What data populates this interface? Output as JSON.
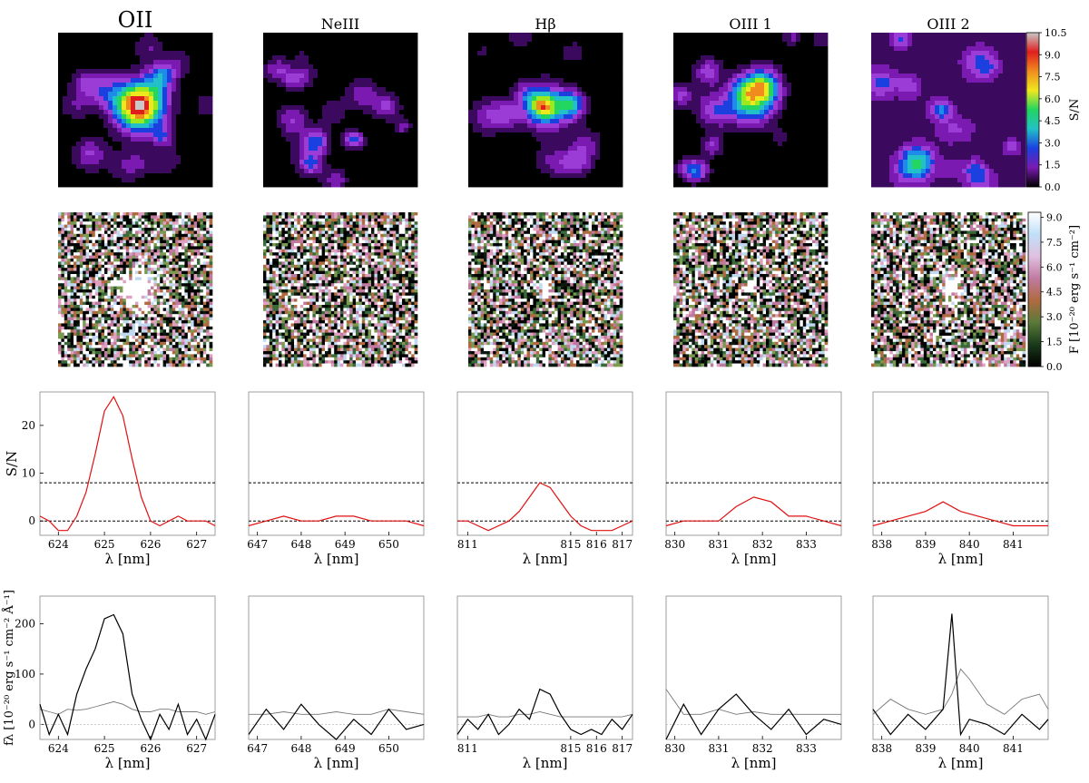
{
  "figure": {
    "columns": [
      {
        "title": "OII"
      },
      {
        "title": "NeIII"
      },
      {
        "title": "Hβ"
      },
      {
        "title": "OIII 1"
      },
      {
        "title": "OIII 2"
      }
    ],
    "sn_colorbar": {
      "label": "S/N",
      "ticks": [
        "0.0",
        "1.5",
        "3.0",
        "4.5",
        "6.0",
        "7.5",
        "9.0",
        "10.5"
      ]
    },
    "flux_colorbar": {
      "label": "F [10⁻²⁰ erg s⁻¹ cm⁻²]",
      "ticks": [
        "0.0",
        "1.5",
        "3.0",
        "4.5",
        "6.0",
        "7.5",
        "9.0"
      ]
    }
  },
  "chart_data": [
    {
      "type": "line",
      "panel": "sn-spectra",
      "ylabel": "S/N",
      "xlabel": "λ [nm]",
      "ylim": [
        -3,
        27
      ],
      "yticks": [
        0,
        10,
        20
      ],
      "threshold_lines": [
        0,
        8
      ],
      "panels": [
        {
          "line": "OII",
          "xlim": [
            623.6,
            627.4
          ],
          "xticks": [
            624,
            625,
            626,
            627
          ],
          "x": [
            623.6,
            623.8,
            624.0,
            624.2,
            624.4,
            624.6,
            624.8,
            625.0,
            625.2,
            625.4,
            625.6,
            625.8,
            626.0,
            626.2,
            626.4,
            626.6,
            626.8,
            627.0,
            627.2,
            627.4
          ],
          "y": [
            1,
            0,
            -2,
            -2,
            1,
            6,
            14,
            23,
            26,
            22,
            13,
            5,
            0,
            -1,
            0,
            1,
            0,
            0,
            0,
            -1
          ]
        },
        {
          "line": "NeIII",
          "xlim": [
            646.8,
            650.8
          ],
          "xticks": [
            647,
            648,
            649,
            650
          ],
          "x": [
            646.8,
            647.2,
            647.6,
            648.0,
            648.4,
            648.8,
            649.2,
            649.6,
            650.0,
            650.4,
            650.8
          ],
          "y": [
            -1,
            0,
            1,
            0,
            0,
            1,
            1,
            0,
            0,
            0,
            -1
          ]
        },
        {
          "line": "Hβ",
          "xlim": [
            810.6,
            817.4
          ],
          "xticks": [
            811,
            815,
            816,
            817
          ],
          "x": [
            810.6,
            811.0,
            811.4,
            811.8,
            812.2,
            812.6,
            813.0,
            813.4,
            813.8,
            814.2,
            814.6,
            815.0,
            815.4,
            815.8,
            816.2,
            816.6,
            817.0,
            817.4
          ],
          "y": [
            0,
            0,
            -1,
            -2,
            -1,
            0,
            2,
            5,
            8,
            7,
            4,
            1,
            -1,
            -2,
            -2,
            -2,
            -1,
            0
          ]
        },
        {
          "line": "OIII 1",
          "xlim": [
            829.8,
            833.8
          ],
          "xticks": [
            830,
            831,
            832,
            833
          ],
          "x": [
            829.8,
            830.2,
            830.6,
            831.0,
            831.4,
            831.8,
            832.2,
            832.6,
            833.0,
            833.4,
            833.8
          ],
          "y": [
            -1,
            0,
            0,
            0,
            3,
            5,
            4,
            1,
            1,
            0,
            -1
          ]
        },
        {
          "line": "OIII 2",
          "xlim": [
            837.8,
            841.8
          ],
          "xticks": [
            838,
            839,
            840,
            841
          ],
          "x": [
            837.8,
            838.2,
            838.6,
            839.0,
            839.4,
            839.8,
            840.2,
            840.6,
            841.0,
            841.4,
            841.8
          ],
          "y": [
            -1,
            0,
            1,
            2,
            4,
            2,
            1,
            0,
            -1,
            -1,
            -1
          ]
        }
      ]
    },
    {
      "type": "line",
      "panel": "flux-spectra",
      "ylabel": "fλ [10⁻²⁰ erg s⁻¹ cm⁻² Å⁻¹]",
      "xlabel": "λ [nm]",
      "ylim": [
        -30,
        255
      ],
      "yticks": [
        0,
        100,
        200
      ],
      "panels": [
        {
          "line": "OII",
          "xlim": [
            623.6,
            627.4
          ],
          "xticks": [
            624,
            625,
            626,
            627
          ],
          "x": [
            623.6,
            623.8,
            624.0,
            624.2,
            624.4,
            624.6,
            624.8,
            625.0,
            625.2,
            625.4,
            625.6,
            625.8,
            626.0,
            626.2,
            626.4,
            626.6,
            626.8,
            627.0,
            627.2,
            627.4
          ],
          "flux": [
            40,
            -20,
            20,
            -20,
            60,
            110,
            150,
            210,
            218,
            180,
            60,
            10,
            -30,
            20,
            -10,
            40,
            -20,
            10,
            -30,
            20
          ],
          "noise": [
            30,
            25,
            20,
            30,
            28,
            30,
            35,
            40,
            45,
            40,
            30,
            25,
            25,
            30,
            30,
            25,
            25,
            25,
            20,
            25
          ]
        },
        {
          "line": "NeIII",
          "xlim": [
            646.8,
            650.8
          ],
          "xticks": [
            647,
            648,
            649,
            650
          ],
          "x": [
            646.8,
            647.2,
            647.6,
            648.0,
            648.4,
            648.8,
            649.2,
            649.6,
            650.0,
            650.4,
            650.8
          ],
          "flux": [
            -20,
            30,
            -10,
            40,
            0,
            -30,
            10,
            -20,
            30,
            -10,
            0
          ],
          "noise": [
            20,
            20,
            25,
            20,
            20,
            25,
            20,
            20,
            30,
            25,
            20
          ]
        },
        {
          "line": "Hβ",
          "xlim": [
            810.6,
            817.4
          ],
          "xticks": [
            811,
            815,
            816,
            817
          ],
          "x": [
            810.6,
            811.0,
            811.4,
            811.8,
            812.2,
            812.6,
            813.0,
            813.4,
            813.8,
            814.2,
            814.6,
            815.0,
            815.4,
            815.8,
            816.2,
            816.6,
            817.0,
            817.4
          ],
          "flux": [
            -20,
            10,
            -10,
            20,
            -20,
            0,
            30,
            10,
            70,
            60,
            20,
            -10,
            -20,
            -10,
            -20,
            10,
            -10,
            20
          ],
          "noise": [
            15,
            15,
            15,
            20,
            15,
            15,
            20,
            20,
            25,
            20,
            15,
            15,
            15,
            15,
            15,
            15,
            15,
            20
          ]
        },
        {
          "line": "OIII 1",
          "xlim": [
            829.8,
            833.8
          ],
          "xticks": [
            830,
            831,
            832,
            833
          ],
          "x": [
            829.8,
            830.2,
            830.6,
            831.0,
            831.4,
            831.8,
            832.2,
            832.6,
            833.0,
            833.4,
            833.8
          ],
          "flux": [
            -30,
            40,
            -20,
            30,
            60,
            20,
            -10,
            30,
            -20,
            10,
            0
          ],
          "noise": [
            70,
            20,
            20,
            30,
            20,
            25,
            20,
            20,
            20,
            20,
            20
          ]
        },
        {
          "line": "OIII 2",
          "xlim": [
            837.8,
            841.8
          ],
          "xticks": [
            838,
            839,
            840,
            841
          ],
          "x": [
            837.8,
            838.2,
            838.6,
            839.0,
            839.4,
            839.6,
            839.8,
            840.0,
            840.4,
            840.8,
            841.2,
            841.6,
            841.8
          ],
          "flux": [
            30,
            -20,
            20,
            -10,
            30,
            220,
            -20,
            10,
            0,
            -20,
            20,
            -10,
            10
          ],
          "noise": [
            20,
            50,
            30,
            20,
            30,
            60,
            110,
            90,
            40,
            20,
            50,
            60,
            30
          ]
        }
      ]
    }
  ]
}
